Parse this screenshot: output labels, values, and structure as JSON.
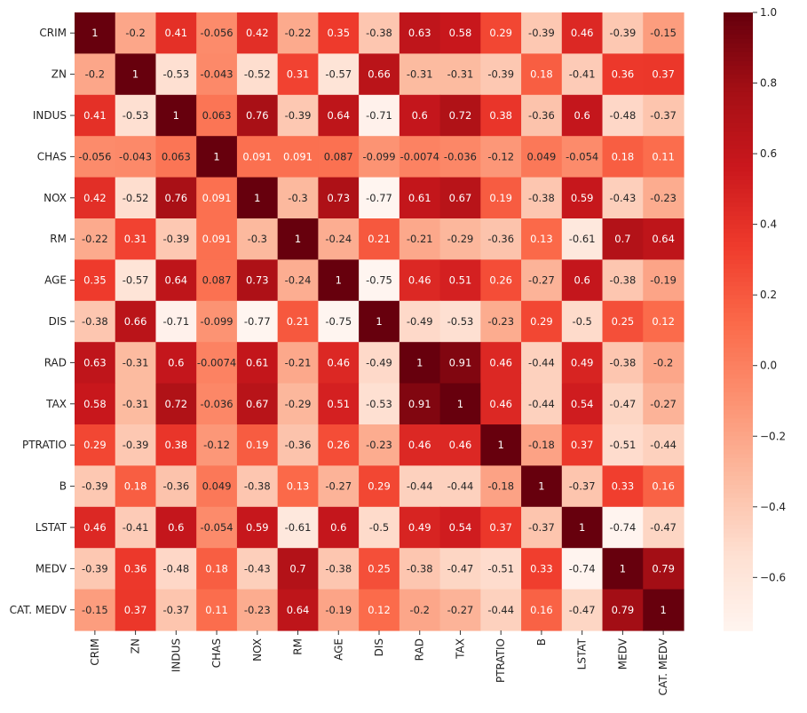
{
  "chart_data": {
    "type": "heatmap",
    "title": "",
    "colormap": "Reds",
    "vmin": -0.75,
    "vmax": 1.0,
    "annotated": true,
    "labels": [
      "CRIM",
      "ZN",
      "INDUS",
      "CHAS",
      "NOX",
      "RM",
      "AGE",
      "DIS",
      "RAD",
      "TAX",
      "PTRATIO",
      "B",
      "LSTAT",
      "MEDV",
      "CAT. MEDV"
    ],
    "matrix": [
      [
        1,
        -0.2,
        0.41,
        -0.056,
        0.42,
        -0.22,
        0.35,
        -0.38,
        0.63,
        0.58,
        0.29,
        -0.39,
        0.46,
        -0.39,
        -0.15
      ],
      [
        -0.2,
        1,
        -0.53,
        -0.043,
        -0.52,
        0.31,
        -0.57,
        0.66,
        -0.31,
        -0.31,
        -0.39,
        0.18,
        -0.41,
        0.36,
        0.37
      ],
      [
        0.41,
        -0.53,
        1,
        0.063,
        0.76,
        -0.39,
        0.64,
        -0.71,
        0.6,
        0.72,
        0.38,
        -0.36,
        0.6,
        -0.48,
        -0.37
      ],
      [
        -0.056,
        -0.043,
        0.063,
        1,
        0.091,
        0.091,
        0.087,
        -0.099,
        -0.0074,
        -0.036,
        -0.12,
        0.049,
        -0.054,
        0.18,
        0.11
      ],
      [
        0.42,
        -0.52,
        0.76,
        0.091,
        1,
        -0.3,
        0.73,
        -0.77,
        0.61,
        0.67,
        0.19,
        -0.38,
        0.59,
        -0.43,
        -0.23
      ],
      [
        -0.22,
        0.31,
        -0.39,
        0.091,
        -0.3,
        1,
        -0.24,
        0.21,
        -0.21,
        -0.29,
        -0.36,
        0.13,
        -0.61,
        0.7,
        0.64
      ],
      [
        0.35,
        -0.57,
        0.64,
        0.087,
        0.73,
        -0.24,
        1,
        -0.75,
        0.46,
        0.51,
        0.26,
        -0.27,
        0.6,
        -0.38,
        -0.19
      ],
      [
        -0.38,
        0.66,
        -0.71,
        -0.099,
        -0.77,
        0.21,
        -0.75,
        1,
        -0.49,
        -0.53,
        -0.23,
        0.29,
        -0.5,
        0.25,
        0.12
      ],
      [
        0.63,
        -0.31,
        0.6,
        -0.0074,
        0.61,
        -0.21,
        0.46,
        -0.49,
        1,
        0.91,
        0.46,
        -0.44,
        0.49,
        -0.38,
        -0.2
      ],
      [
        0.58,
        -0.31,
        0.72,
        -0.036,
        0.67,
        -0.29,
        0.51,
        -0.53,
        0.91,
        1,
        0.46,
        -0.44,
        0.54,
        -0.47,
        -0.27
      ],
      [
        0.29,
        -0.39,
        0.38,
        -0.12,
        0.19,
        -0.36,
        0.26,
        -0.23,
        0.46,
        0.46,
        1,
        -0.18,
        0.37,
        -0.51,
        -0.44
      ],
      [
        -0.39,
        0.18,
        -0.36,
        0.049,
        -0.38,
        0.13,
        -0.27,
        0.29,
        -0.44,
        -0.44,
        -0.18,
        1,
        -0.37,
        0.33,
        0.16
      ],
      [
        0.46,
        -0.41,
        0.6,
        -0.054,
        0.59,
        -0.61,
        0.6,
        -0.5,
        0.49,
        0.54,
        0.37,
        -0.37,
        1,
        -0.74,
        -0.47
      ],
      [
        -0.39,
        0.36,
        -0.48,
        0.18,
        -0.43,
        0.7,
        -0.38,
        0.25,
        -0.38,
        -0.47,
        -0.51,
        0.33,
        -0.74,
        1,
        0.79
      ],
      [
        -0.15,
        0.37,
        -0.37,
        0.11,
        -0.23,
        0.64,
        -0.19,
        0.12,
        -0.2,
        -0.27,
        -0.44,
        0.16,
        -0.47,
        0.79,
        1
      ]
    ],
    "display_values": [
      [
        "1",
        "-0.2",
        "0.41",
        "-0.056",
        "0.42",
        "-0.22",
        "0.35",
        "-0.38",
        "0.63",
        "0.58",
        "0.29",
        "-0.39",
        "0.46",
        "-0.39",
        "-0.15"
      ],
      [
        "-0.2",
        "1",
        "-0.53",
        "-0.043",
        "-0.52",
        "0.31",
        "-0.57",
        "0.66",
        "-0.31",
        "-0.31",
        "-0.39",
        "0.18",
        "-0.41",
        "0.36",
        "0.37"
      ],
      [
        "0.41",
        "-0.53",
        "1",
        "0.063",
        "0.76",
        "-0.39",
        "0.64",
        "-0.71",
        "0.6",
        "0.72",
        "0.38",
        "-0.36",
        "0.6",
        "-0.48",
        "-0.37"
      ],
      [
        "-0.056",
        "-0.043",
        "0.063",
        "1",
        "0.091",
        "0.091",
        "0.087",
        "-0.099",
        "-0.0074",
        "-0.036",
        "-0.12",
        "0.049",
        "-0.054",
        "0.18",
        "0.11"
      ],
      [
        "0.42",
        "-0.52",
        "0.76",
        "0.091",
        "1",
        "-0.3",
        "0.73",
        "-0.77",
        "0.61",
        "0.67",
        "0.19",
        "-0.38",
        "0.59",
        "-0.43",
        "-0.23"
      ],
      [
        "-0.22",
        "0.31",
        "-0.39",
        "0.091",
        "-0.3",
        "1",
        "-0.24",
        "0.21",
        "-0.21",
        "-0.29",
        "-0.36",
        "0.13",
        "-0.61",
        "0.7",
        "0.64"
      ],
      [
        "0.35",
        "-0.57",
        "0.64",
        "0.087",
        "0.73",
        "-0.24",
        "1",
        "-0.75",
        "0.46",
        "0.51",
        "0.26",
        "-0.27",
        "0.6",
        "-0.38",
        "-0.19"
      ],
      [
        "-0.38",
        "0.66",
        "-0.71",
        "-0.099",
        "-0.77",
        "0.21",
        "-0.75",
        "1",
        "-0.49",
        "-0.53",
        "-0.23",
        "0.29",
        "-0.5",
        "0.25",
        "0.12"
      ],
      [
        "0.63",
        "-0.31",
        "0.6",
        "-0.0074",
        "0.61",
        "-0.21",
        "0.46",
        "-0.49",
        "1",
        "0.91",
        "0.46",
        "-0.44",
        "0.49",
        "-0.38",
        "-0.2"
      ],
      [
        "0.58",
        "-0.31",
        "0.72",
        "-0.036",
        "0.67",
        "-0.29",
        "0.51",
        "-0.53",
        "0.91",
        "1",
        "0.46",
        "-0.44",
        "0.54",
        "-0.47",
        "-0.27"
      ],
      [
        "0.29",
        "-0.39",
        "0.38",
        "-0.12",
        "0.19",
        "-0.36",
        "0.26",
        "-0.23",
        "0.46",
        "0.46",
        "1",
        "-0.18",
        "0.37",
        "-0.51",
        "-0.44"
      ],
      [
        "-0.39",
        "0.18",
        "-0.36",
        "0.049",
        "-0.38",
        "0.13",
        "-0.27",
        "0.29",
        "-0.44",
        "-0.44",
        "-0.18",
        "1",
        "-0.37",
        "0.33",
        "0.16"
      ],
      [
        "0.46",
        "-0.41",
        "0.6",
        "-0.054",
        "0.59",
        "-0.61",
        "0.6",
        "-0.5",
        "0.49",
        "0.54",
        "0.37",
        "-0.37",
        "1",
        "-0.74",
        "-0.47"
      ],
      [
        "-0.39",
        "0.36",
        "-0.48",
        "0.18",
        "-0.43",
        "0.7",
        "-0.38",
        "0.25",
        "-0.38",
        "-0.47",
        "-0.51",
        "0.33",
        "-0.74",
        "1",
        "0.79"
      ],
      [
        "-0.15",
        "0.37",
        "-0.37",
        "0.11",
        "-0.23",
        "0.64",
        "-0.19",
        "0.12",
        "-0.2",
        "-0.27",
        "-0.44",
        "0.16",
        "-0.47",
        "0.79",
        "1"
      ]
    ],
    "colorbar": {
      "ticks": [
        1.0,
        0.8,
        0.6,
        0.4,
        0.2,
        0.0,
        -0.2,
        -0.4,
        -0.6
      ],
      "tick_labels": [
        "1.0",
        "0.8",
        "0.6",
        "0.4",
        "0.2",
        "0.0",
        "−0.2",
        "−0.4",
        "−0.6"
      ]
    }
  }
}
